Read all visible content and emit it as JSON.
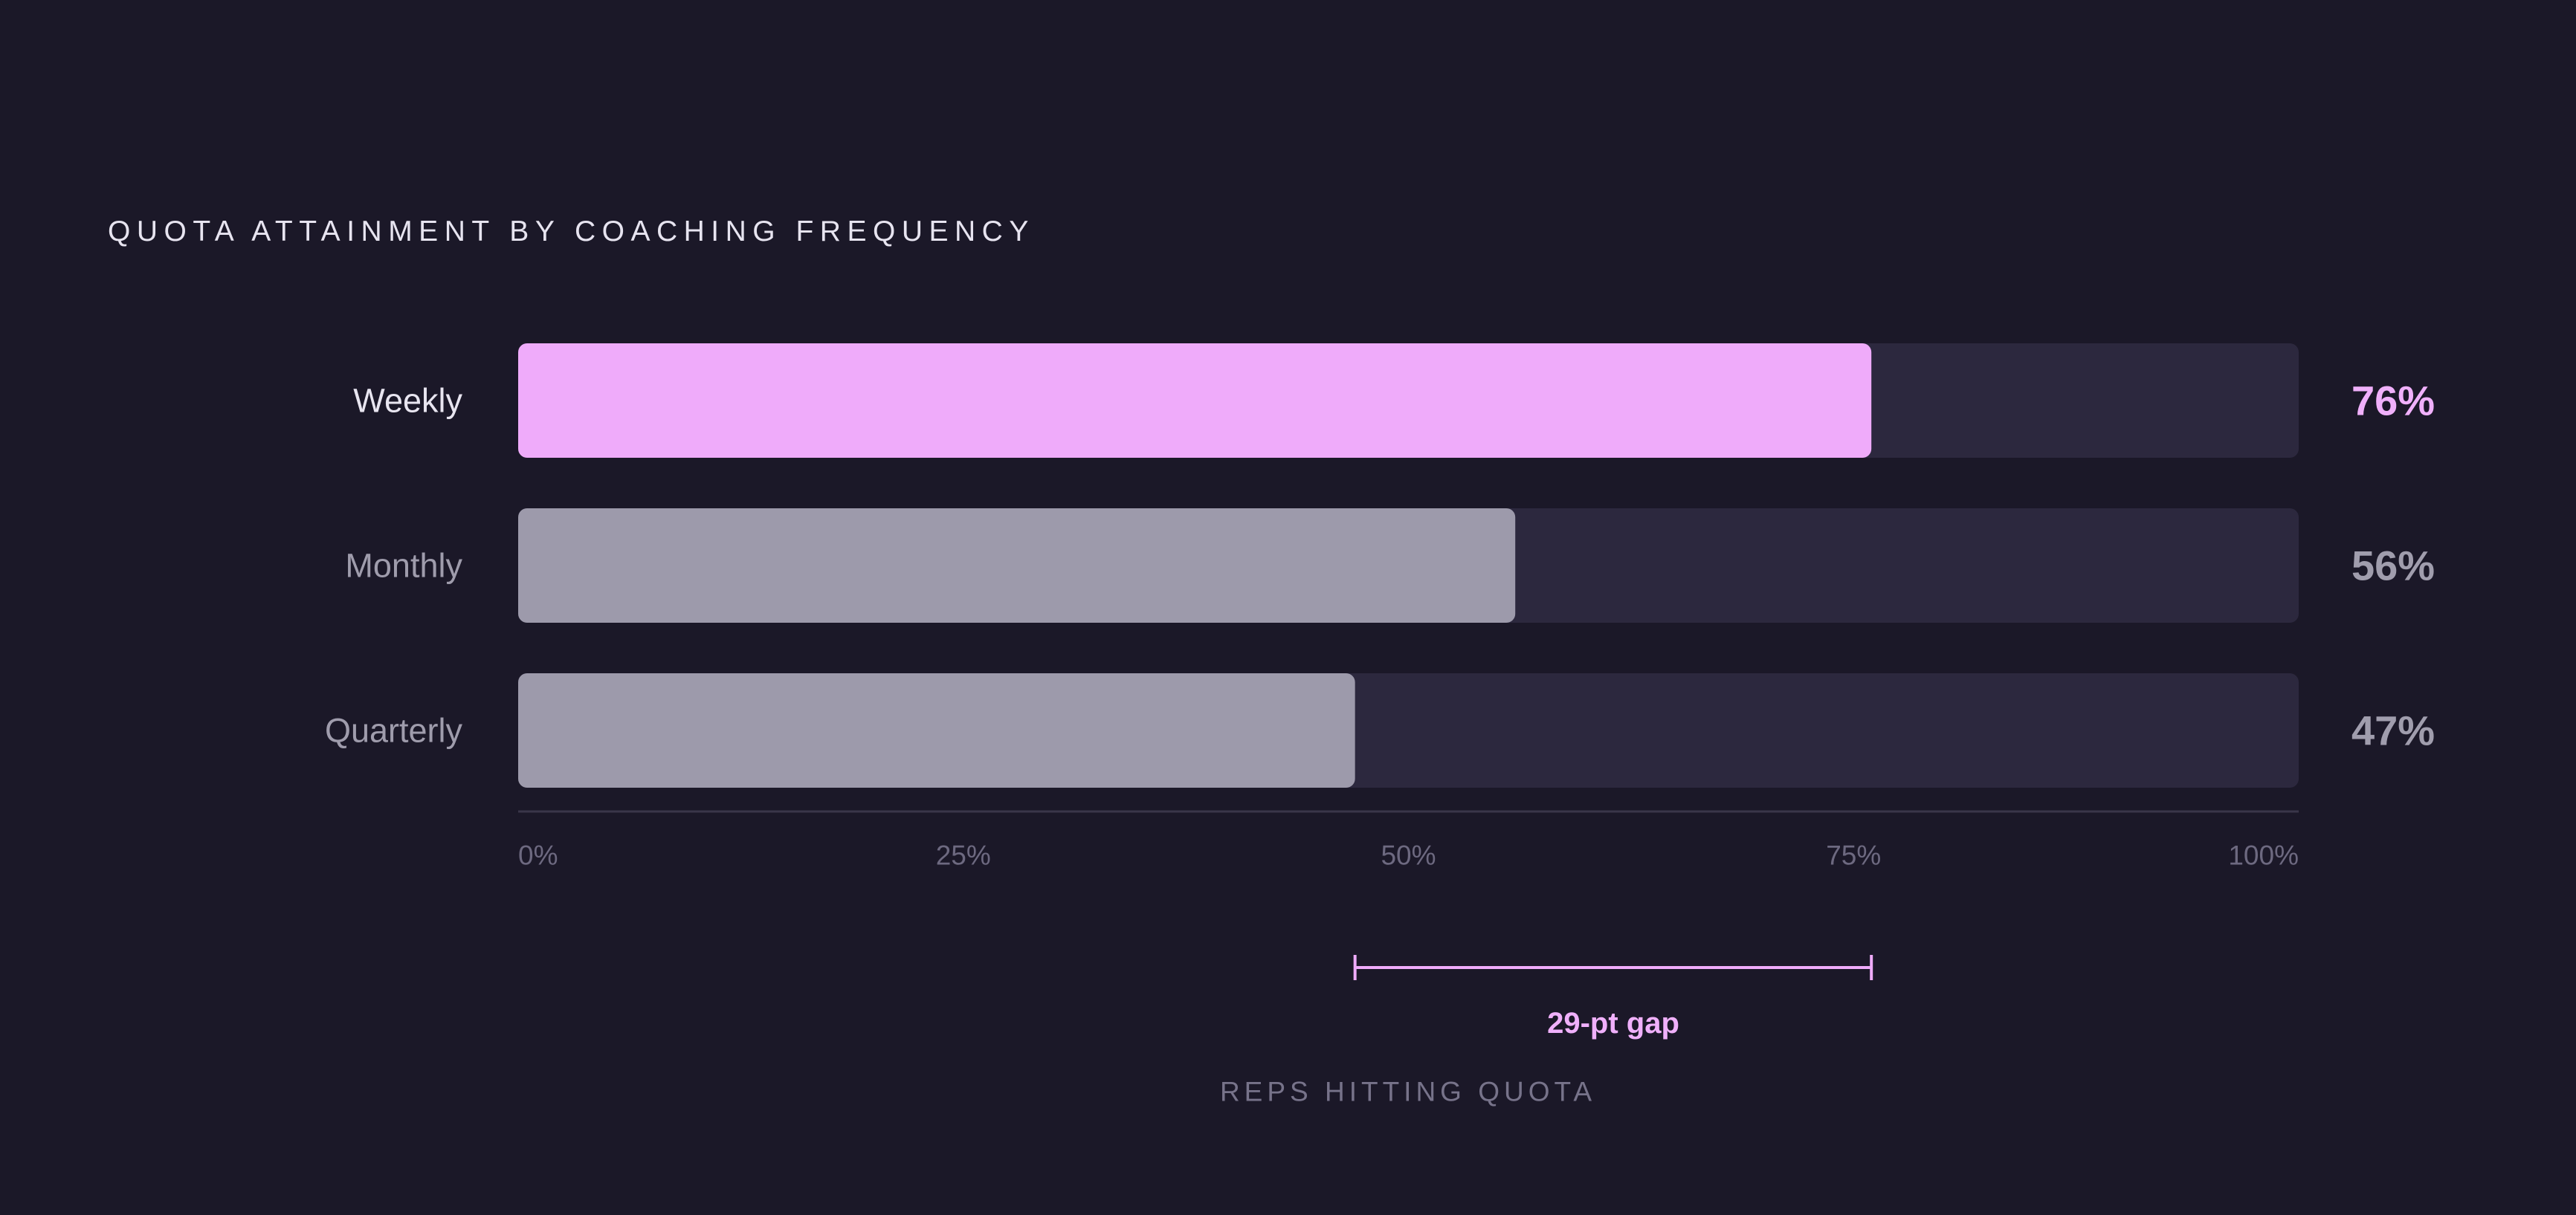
{
  "chart_data": {
    "type": "bar",
    "orientation": "horizontal",
    "title": "QUOTA ATTAINMENT BY COACHING FREQUENCY",
    "xlabel": "REPS HITTING QUOTA",
    "ylabel": "",
    "xlim": [
      0,
      100
    ],
    "grid": false,
    "categories": [
      "Weekly",
      "Monthly",
      "Quarterly"
    ],
    "values": [
      76,
      56,
      47
    ],
    "value_labels": [
      "76%",
      "56%",
      "47%"
    ],
    "tick_labels": [
      "0%",
      "25%",
      "50%",
      "75%",
      "100%"
    ],
    "tick_values": [
      0,
      25,
      50,
      75,
      100
    ],
    "annotation": {
      "text": "29-pt gap",
      "from": 47,
      "to": 76
    },
    "colors": {
      "background": "#1b1828",
      "highlight": "#efabfa",
      "muted_bar": "#9d9aab",
      "track": "#2c283e",
      "highlight_label": "#f0b0fb",
      "muted_label": "#a09dad",
      "highlight_category": "#e8e5f0",
      "muted_category": "#9f9cac",
      "axis": "#3a3649",
      "tick": "#6d6980",
      "xlabel": "#77738a"
    }
  }
}
